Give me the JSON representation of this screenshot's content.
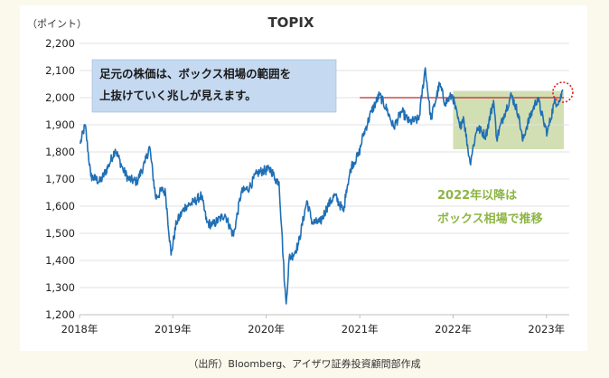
{
  "chart_data": {
    "type": "line",
    "title": "TOPIX",
    "ylabel": "（ポイント）",
    "ylim": [
      1200,
      2200
    ],
    "yticks": [
      1200,
      1300,
      1400,
      1500,
      1600,
      1700,
      1800,
      1900,
      2000,
      2100,
      2200
    ],
    "ytick_labels": [
      "1,200",
      "1,300",
      "1,400",
      "1,500",
      "1,600",
      "1,700",
      "1,800",
      "1,900",
      "2,000",
      "2,100",
      "2,200"
    ],
    "xlim": [
      "2018-01-01",
      "2023-03-31"
    ],
    "xticks": [
      "2018-01-01",
      "2019-01-01",
      "2020-01-01",
      "2021-01-01",
      "2022-01-01",
      "2023-01-01"
    ],
    "xtick_labels": [
      "2018年",
      "2019年",
      "2020年",
      "2021年",
      "2022年",
      "2023年"
    ],
    "grid": "horizontal",
    "colors": {
      "line": "#1f6fb5",
      "box_fill": "#c6d7a0",
      "ref_line": "#c0282c",
      "circle": "#e02020",
      "callout_bg": "#c5d9f1",
      "annotation_text": "#8db544"
    },
    "series": [
      {
        "x": [
          "2018-01-04",
          "2018-01-23",
          "2018-02-14",
          "2018-03-23",
          "2018-04-25",
          "2018-05-21",
          "2018-06-20",
          "2018-07-12",
          "2018-08-13",
          "2018-09-14",
          "2018-10-02",
          "2018-10-26",
          "2018-11-20",
          "2018-12-03",
          "2018-12-25",
          "2019-01-15",
          "2019-02-20",
          "2019-03-25",
          "2019-04-22",
          "2019-05-14",
          "2019-06-04",
          "2019-07-24",
          "2019-08-26",
          "2019-09-25",
          "2019-10-28",
          "2019-11-25",
          "2019-12-17",
          "2020-01-20",
          "2020-02-05",
          "2020-02-20",
          "2020-03-02",
          "2020-03-13",
          "2020-03-19",
          "2020-03-31",
          "2020-04-15",
          "2020-05-06",
          "2020-06-08",
          "2020-06-29",
          "2020-07-30",
          "2020-08-28",
          "2020-09-25",
          "2020-10-30",
          "2020-11-09",
          "2020-11-30",
          "2020-12-28",
          "2021-01-14",
          "2021-02-16",
          "2021-03-19",
          "2021-04-20",
          "2021-05-13",
          "2021-06-14",
          "2021-07-13",
          "2021-08-20",
          "2021-09-14",
          "2021-10-06",
          "2021-11-09",
          "2021-12-01",
          "2021-12-29",
          "2022-01-27",
          "2022-02-10",
          "2022-03-08",
          "2022-04-05",
          "2022-05-09",
          "2022-06-08",
          "2022-06-20",
          "2022-07-20",
          "2022-08-17",
          "2022-09-13",
          "2022-09-30",
          "2022-10-14",
          "2022-11-10",
          "2022-11-28",
          "2022-12-21",
          "2023-01-04",
          "2023-01-31",
          "2023-02-22",
          "2023-03-06"
        ],
        "y": [
          1830,
          1900,
          1710,
          1690,
          1750,
          1810,
          1735,
          1700,
          1690,
          1760,
          1820,
          1630,
          1660,
          1650,
          1420,
          1540,
          1600,
          1615,
          1640,
          1540,
          1530,
          1570,
          1490,
          1650,
          1670,
          1720,
          1730,
          1735,
          1700,
          1690,
          1510,
          1310,
          1240,
          1410,
          1420,
          1460,
          1620,
          1540,
          1540,
          1600,
          1640,
          1580,
          1660,
          1750,
          1790,
          1860,
          1950,
          2010,
          1950,
          1890,
          1950,
          1910,
          1920,
          2110,
          1920,
          2050,
          1980,
          2010,
          1890,
          1930,
          1760,
          1890,
          1860,
          1990,
          1850,
          1940,
          2010,
          1940,
          1840,
          1890,
          1960,
          2000,
          1910,
          1870,
          1980,
          1990,
          2030
        ]
      }
    ],
    "annotations": {
      "callout_line1": "足元の株価は、ボックス相場の範囲を",
      "callout_line2": "上抜けていく兆しが見えます。",
      "box_label_line1": "2022年以降は",
      "box_label_line2": "ボックス相場で推移",
      "box_range": {
        "x": [
          "2022-01-01",
          "2023-03-10"
        ],
        "y": [
          1810,
          2025
        ]
      },
      "ref_line": {
        "y": 2000,
        "x": [
          "2021-01-01",
          "2023-03-10"
        ]
      },
      "circle_at": {
        "x": "2023-03-06",
        "y": 2020
      }
    }
  },
  "footer": {
    "source": "（出所）Bloomberg、アイザワ証券投資顧問部作成"
  }
}
